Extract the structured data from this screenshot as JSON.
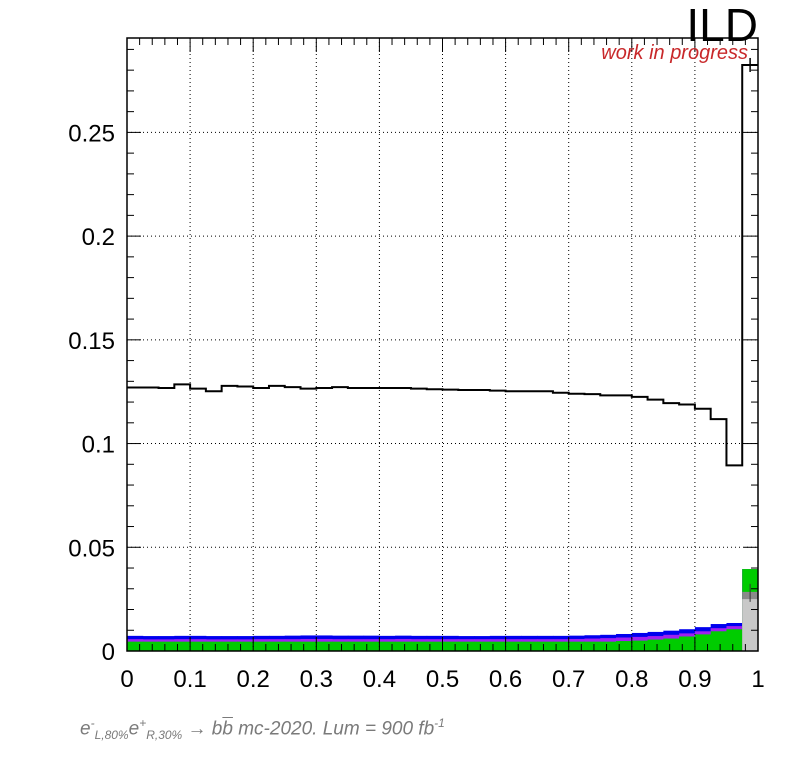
{
  "experiment_label": "ILD",
  "status_label": "work in progress",
  "caption": {
    "e1": "e",
    "e1_sup": "-",
    "e1_sub": "L,80%",
    "e2": "e",
    "e2_sup": "+",
    "e2_sub": "R,30%",
    "arrow": "→",
    "b": "b",
    "bbar": "b",
    "text": "mc-2020. Lum = 900 fb",
    "unit_sup": "-1"
  },
  "colors": {
    "signal_line": "#000000",
    "green": "#00cc00",
    "blue": "#0000ee",
    "purple": "#a020f0",
    "gray_dark": "#8a8a8a",
    "gray_light": "#c8c8c8",
    "grid": "#000000",
    "status": "#c8282a"
  },
  "chart_data": {
    "type": "histogram",
    "xlim": [
      0,
      1
    ],
    "ylim": [
      0,
      0.2955
    ],
    "grid": true,
    "xticks": [
      "0",
      "0.1",
      "0.2",
      "0.3",
      "0.4",
      "0.5",
      "0.6",
      "0.7",
      "0.8",
      "0.9",
      "1"
    ],
    "yticks": [
      "0",
      "0.05",
      "0.1",
      "0.15",
      "0.2",
      "0.25"
    ],
    "bin_edges": [
      0,
      0.025,
      0.05,
      0.075,
      0.1,
      0.125,
      0.15,
      0.175,
      0.2,
      0.225,
      0.25,
      0.275,
      0.3,
      0.325,
      0.35,
      0.375,
      0.4,
      0.425,
      0.45,
      0.475,
      0.5,
      0.525,
      0.55,
      0.575,
      0.6,
      0.625,
      0.65,
      0.675,
      0.7,
      0.725,
      0.75,
      0.775,
      0.8,
      0.825,
      0.85,
      0.875,
      0.9,
      0.925,
      0.95,
      0.975,
      1.0
    ],
    "series": [
      {
        "style": "step",
        "values": [
          0.127,
          0.127,
          0.1268,
          0.1285,
          0.1265,
          0.1252,
          0.1278,
          0.1275,
          0.1268,
          0.1278,
          0.1272,
          0.1265,
          0.1268,
          0.1272,
          0.1268,
          0.1268,
          0.1268,
          0.1268,
          0.1265,
          0.1262,
          0.126,
          0.1258,
          0.1258,
          0.1255,
          0.1252,
          0.1252,
          0.1252,
          0.1245,
          0.124,
          0.1238,
          0.1232,
          0.1232,
          0.1225,
          0.1212,
          0.1195,
          0.1188,
          0.1168,
          0.1118,
          0.0895,
          0.2825
        ]
      },
      {
        "style": "stacked-fill",
        "green": [
          0.0045,
          0.0045,
          0.0045,
          0.0045,
          0.0045,
          0.0045,
          0.0045,
          0.0045,
          0.0045,
          0.0045,
          0.0045,
          0.0045,
          0.0045,
          0.0045,
          0.0045,
          0.0045,
          0.0045,
          0.0045,
          0.0045,
          0.0045,
          0.0045,
          0.0045,
          0.0045,
          0.0045,
          0.0045,
          0.0045,
          0.0045,
          0.0045,
          0.0045,
          0.0045,
          0.0045,
          0.0048,
          0.005,
          0.0055,
          0.006,
          0.007,
          0.008,
          0.0095,
          0.0105,
          0.0395
        ],
        "purple": [
          0.0057,
          0.0056,
          0.0056,
          0.0057,
          0.0057,
          0.0056,
          0.0056,
          0.0056,
          0.0057,
          0.0057,
          0.0057,
          0.0058,
          0.0058,
          0.0057,
          0.0057,
          0.0057,
          0.0057,
          0.0058,
          0.0057,
          0.0057,
          0.0057,
          0.0057,
          0.0057,
          0.0057,
          0.0057,
          0.0057,
          0.0057,
          0.0057,
          0.0058,
          0.006,
          0.0062,
          0.0065,
          0.0068,
          0.0072,
          0.0078,
          0.0085,
          0.0095,
          0.011,
          0.012,
          0.0395
        ],
        "blue": [
          0.0073,
          0.0072,
          0.0072,
          0.0073,
          0.0073,
          0.0072,
          0.0072,
          0.0072,
          0.0073,
          0.0073,
          0.0074,
          0.0075,
          0.0075,
          0.0074,
          0.0074,
          0.0074,
          0.0073,
          0.0074,
          0.0073,
          0.0073,
          0.0073,
          0.0072,
          0.0072,
          0.0073,
          0.0073,
          0.0073,
          0.0073,
          0.0073,
          0.0074,
          0.0076,
          0.0078,
          0.0082,
          0.0087,
          0.0092,
          0.0098,
          0.0105,
          0.0115,
          0.013,
          0.0135,
          0.0395
        ],
        "gray_dark": [
          0,
          0,
          0,
          0,
          0,
          0,
          0,
          0,
          0,
          0,
          0,
          0,
          0,
          0,
          0,
          0,
          0,
          0,
          0,
          0,
          0,
          0,
          0,
          0,
          0,
          0,
          0,
          0,
          0,
          0,
          0,
          0,
          0,
          0,
          0,
          0,
          0,
          0,
          0,
          0.0285
        ],
        "gray_light": [
          0,
          0,
          0,
          0,
          0,
          0,
          0,
          0,
          0,
          0,
          0,
          0,
          0,
          0,
          0,
          0,
          0,
          0,
          0,
          0,
          0,
          0,
          0,
          0,
          0,
          0,
          0,
          0,
          0,
          0,
          0,
          0,
          0,
          0,
          0,
          0,
          0,
          0,
          0,
          0.025
        ]
      }
    ]
  }
}
